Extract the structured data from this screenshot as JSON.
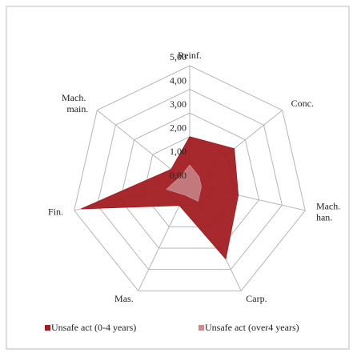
{
  "chart_data": {
    "type": "radar",
    "categories": [
      "Reinf.",
      "Conc.",
      "Mach. han.",
      "Carp.",
      "Mas.",
      "Fin.",
      "Mach. main."
    ],
    "series": [
      {
        "name": "Unsafe act (0-4 years)",
        "color": "#a31d22",
        "values": [
          2.0,
          2.4,
          2.1,
          3.5,
          1.0,
          4.7,
          1.0
        ]
      },
      {
        "name": "Unsafe act (over4 years)",
        "color": "#c98c8f",
        "values": [
          0.8,
          0.5,
          0.5,
          0.8,
          0.5,
          1.0,
          0.5
        ]
      }
    ],
    "ylim": [
      0,
      5
    ],
    "yticks": [
      {
        "value": 0,
        "label": "0,00"
      },
      {
        "value": 1,
        "label": "1,00"
      },
      {
        "value": 2,
        "label": "2,00"
      },
      {
        "value": 3,
        "label": "3,00"
      },
      {
        "value": 4,
        "label": "4,00"
      },
      {
        "value": 5,
        "label": "5,00"
      }
    ],
    "grid": true,
    "legend": "bottom"
  }
}
